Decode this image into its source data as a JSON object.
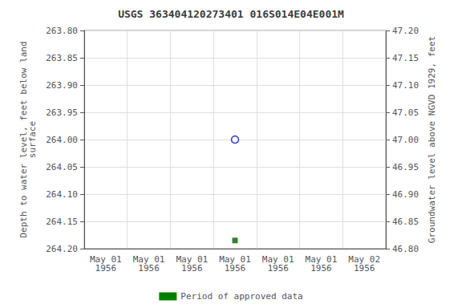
{
  "chart_data": {
    "type": "scatter",
    "title": "USGS 363404120273401 016S014E04E001M",
    "y_label": "Depth to water level, feet below land\nsurface",
    "y2_label": "Groundwater level above NGVD 1929, feet",
    "categories": [
      "May 01\n1956",
      "May 01\n1956",
      "May 01\n1956",
      "May 01\n1956",
      "May 01\n1956",
      "May 01\n1956",
      "May 02\n1956"
    ],
    "series": [
      {
        "values": [
          null,
          null,
          null,
          264.0,
          null,
          null,
          null
        ],
        "color": "#0000cc",
        "marker": "circle-open"
      },
      {
        "values": [
          null,
          null,
          null,
          264.185,
          null,
          null,
          null
        ],
        "color": "#006400",
        "marker": "square"
      }
    ],
    "ylim": [
      264.2,
      263.8
    ],
    "yticks": [
      {
        "value": 263.8,
        "label": "263.80"
      },
      {
        "value": 263.85,
        "label": "263.85"
      },
      {
        "value": 263.9,
        "label": "263.90"
      },
      {
        "value": 263.95,
        "label": "263.95"
      },
      {
        "value": 264.0,
        "label": "264.00"
      },
      {
        "value": 264.05,
        "label": "264.05"
      },
      {
        "value": 264.1,
        "label": "264.10"
      },
      {
        "value": 264.15,
        "label": "264.15"
      },
      {
        "value": 264.2,
        "label": "264.20"
      }
    ],
    "y2lim": [
      46.8,
      47.2
    ],
    "y2ticks": [
      {
        "value": 47.2,
        "label": "47.20"
      },
      {
        "value": 47.15,
        "label": "47.15"
      },
      {
        "value": 47.1,
        "label": "47.10"
      },
      {
        "value": 47.05,
        "label": "47.05"
      },
      {
        "value": 47.0,
        "label": "47.00"
      },
      {
        "value": 46.95,
        "label": "46.95"
      },
      {
        "value": 46.9,
        "label": "46.90"
      },
      {
        "value": 46.85,
        "label": "46.85"
      },
      {
        "value": 46.8,
        "label": "46.80"
      }
    ],
    "grid": true,
    "legend": "bottom",
    "legend_entries": [
      {
        "name": "Period of approved data",
        "color": "#008000"
      }
    ]
  }
}
